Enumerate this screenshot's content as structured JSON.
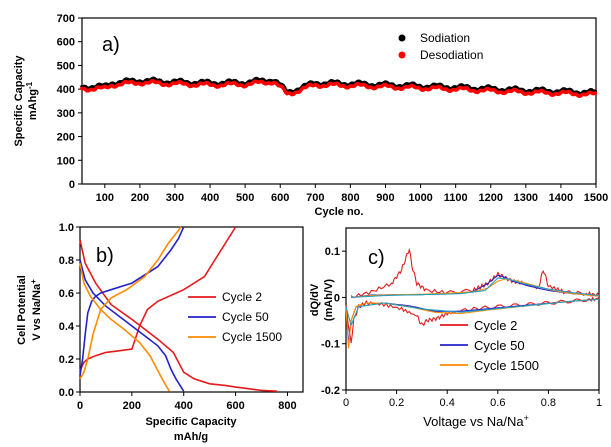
{
  "chart_data": [
    {
      "id": "a",
      "type": "scatter",
      "panel_label": "a)",
      "xlabel": "Cycle no.",
      "ylabel_lines": [
        "Specific Capacity",
        "mAhg-1"
      ],
      "xlim": [
        35,
        1500
      ],
      "ylim": [
        0,
        700
      ],
      "xticks": [
        100,
        200,
        300,
        400,
        500,
        600,
        700,
        800,
        900,
        1000,
        1100,
        1200,
        1300,
        1400,
        1500
      ],
      "yticks": [
        0,
        100,
        200,
        300,
        400,
        500,
        600,
        700
      ],
      "legend_position": "top-right",
      "series": [
        {
          "name": "Sodiation",
          "color": "#000000",
          "x": [
            35,
            100,
            120,
            200,
            300,
            400,
            500,
            580,
            600,
            620,
            700,
            800,
            900,
            1000,
            1100,
            1200,
            1300,
            1400,
            1500
          ],
          "y": [
            412,
            412,
            428,
            438,
            432,
            428,
            430,
            442,
            418,
            388,
            428,
            425,
            420,
            415,
            410,
            403,
            397,
            393,
            387
          ]
        },
        {
          "name": "Desodiation",
          "color": "#ff0000",
          "x": [
            35,
            100,
            120,
            200,
            300,
            400,
            500,
            580,
            600,
            620,
            700,
            800,
            900,
            1000,
            1100,
            1200,
            1300,
            1400,
            1500
          ],
          "y": [
            402,
            402,
            418,
            428,
            422,
            418,
            420,
            432,
            408,
            378,
            418,
            415,
            410,
            405,
            400,
            393,
            387,
            383,
            377
          ]
        }
      ]
    },
    {
      "id": "b",
      "type": "line",
      "panel_label": "b)",
      "xlabel_lines": [
        "Specific Capacity",
        "mAh/g"
      ],
      "ylabel_lines": [
        "Cell Potential",
        "V vs Na/Na+"
      ],
      "xlim": [
        0,
        860
      ],
      "ylim": [
        0,
        1.0
      ],
      "xticks": [
        0,
        200,
        400,
        600,
        800
      ],
      "yticks": [
        0.0,
        0.2,
        0.4,
        0.6,
        0.8,
        1.0
      ],
      "legend_position": "right",
      "series": [
        {
          "name": "Cycle 2",
          "color": "#e41a1c",
          "x": [
            0,
            15,
            30,
            60,
            100,
            150,
            200,
            230,
            260,
            300,
            400,
            480,
            520,
            560,
            600
          ],
          "y": [
            0.13,
            0.18,
            0.2,
            0.22,
            0.24,
            0.25,
            0.26,
            0.4,
            0.5,
            0.55,
            0.62,
            0.7,
            0.8,
            0.9,
            1.0
          ]
        },
        {
          "name": "Cycle 2",
          "color": "#e41a1c",
          "x": [
            0,
            20,
            60,
            120,
            200,
            250,
            300,
            360,
            400,
            440,
            500,
            560,
            600,
            650,
            700,
            760
          ],
          "y": [
            0.92,
            0.78,
            0.66,
            0.53,
            0.44,
            0.38,
            0.32,
            0.24,
            0.12,
            0.08,
            0.05,
            0.04,
            0.03,
            0.02,
            0.01,
            0.005
          ]
        },
        {
          "name": "Cycle 50",
          "color": "#2222cc",
          "x": [
            0,
            10,
            20,
            30,
            45,
            60,
            80,
            120,
            200,
            300,
            350,
            380,
            400
          ],
          "y": [
            0.1,
            0.2,
            0.35,
            0.48,
            0.55,
            0.58,
            0.6,
            0.62,
            0.66,
            0.76,
            0.86,
            0.93,
            1.0
          ]
        },
        {
          "name": "Cycle 50",
          "color": "#2222cc",
          "x": [
            0,
            20,
            50,
            100,
            150,
            200,
            250,
            300,
            330,
            350,
            370,
            390,
            400
          ],
          "y": [
            0.8,
            0.68,
            0.6,
            0.52,
            0.46,
            0.4,
            0.34,
            0.28,
            0.22,
            0.14,
            0.08,
            0.03,
            0.005
          ]
        },
        {
          "name": "Cycle 1500",
          "color": "#ff8c00",
          "x": [
            0,
            15,
            30,
            50,
            80,
            120,
            180,
            250,
            300,
            340,
            370,
            390
          ],
          "y": [
            0.08,
            0.12,
            0.2,
            0.35,
            0.5,
            0.57,
            0.62,
            0.7,
            0.8,
            0.9,
            0.96,
            1.0
          ]
        },
        {
          "name": "Cycle 1500",
          "color": "#ff8c00",
          "x": [
            0,
            15,
            40,
            80,
            120,
            170,
            230,
            270,
            300,
            320,
            335,
            345
          ],
          "y": [
            0.78,
            0.66,
            0.58,
            0.5,
            0.44,
            0.38,
            0.3,
            0.22,
            0.13,
            0.07,
            0.03,
            0.005
          ]
        }
      ]
    },
    {
      "id": "c",
      "type": "line",
      "panel_label": "c)",
      "xlabel": "Voltage vs Na/Na+",
      "ylabel_lines": [
        "dQ/dV",
        "(mAh/V)"
      ],
      "xlim": [
        0,
        1.0
      ],
      "ylim": [
        -0.2,
        0.15
      ],
      "xticks": [
        0,
        0.2,
        0.4,
        0.6,
        0.8,
        1
      ],
      "yticks": [
        -0.2,
        -0.1,
        0,
        0.1
      ],
      "legend_position": "bottom-right",
      "series": [
        {
          "name": "Cycle 2",
          "color": "#e41a1c",
          "x": [
            0.02,
            0.1,
            0.18,
            0.22,
            0.24,
            0.25,
            0.26,
            0.28,
            0.32,
            0.4,
            0.5,
            0.56,
            0.6,
            0.62,
            0.66,
            0.7,
            0.76,
            0.78,
            0.8,
            0.86,
            0.95,
            1.0
          ],
          "y": [
            0.0,
            0.012,
            0.03,
            0.06,
            0.09,
            0.105,
            0.07,
            0.03,
            0.015,
            0.01,
            0.015,
            0.03,
            0.05,
            0.045,
            0.035,
            0.03,
            0.02,
            0.06,
            0.025,
            0.012,
            0.008,
            0.005
          ]
        },
        {
          "name": "Cycle 2",
          "color": "#e41a1c",
          "x": [
            0.0,
            0.02,
            0.03,
            0.05,
            0.08,
            0.15,
            0.22,
            0.28,
            0.3,
            0.32,
            0.36,
            0.4,
            0.46,
            0.55,
            0.65,
            0.75,
            0.85,
            0.95,
            1.0
          ],
          "y": [
            -0.02,
            -0.1,
            -0.05,
            -0.02,
            -0.012,
            -0.015,
            -0.025,
            -0.04,
            -0.06,
            -0.05,
            -0.045,
            -0.035,
            -0.028,
            -0.022,
            -0.018,
            -0.014,
            -0.01,
            -0.005,
            -0.003
          ]
        },
        {
          "name": "Cycle 50",
          "color": "#2222cc",
          "x": [
            0.02,
            0.1,
            0.2,
            0.3,
            0.4,
            0.5,
            0.56,
            0.6,
            0.62,
            0.66,
            0.72,
            0.8,
            0.9,
            1.0
          ],
          "y": [
            0.0,
            0.005,
            0.006,
            0.006,
            0.008,
            0.012,
            0.03,
            0.048,
            0.045,
            0.035,
            0.025,
            0.015,
            0.008,
            0.004
          ]
        },
        {
          "name": "Cycle 50",
          "color": "#2222cc",
          "x": [
            0.0,
            0.01,
            0.02,
            0.04,
            0.08,
            0.15,
            0.25,
            0.35,
            0.45,
            0.55,
            0.65,
            0.75,
            0.85,
            1.0
          ],
          "y": [
            -0.02,
            -0.1,
            -0.05,
            -0.02,
            -0.012,
            -0.012,
            -0.018,
            -0.03,
            -0.03,
            -0.025,
            -0.02,
            -0.015,
            -0.01,
            -0.004
          ]
        },
        {
          "name": "Cycle 1500",
          "color": "#ff8c00",
          "x": [
            0.02,
            0.1,
            0.2,
            0.3,
            0.4,
            0.5,
            0.56,
            0.6,
            0.63,
            0.68,
            0.75,
            0.82,
            0.9,
            1.0
          ],
          "y": [
            0.0,
            0.004,
            0.006,
            0.007,
            0.009,
            0.012,
            0.02,
            0.035,
            0.04,
            0.035,
            0.025,
            0.015,
            0.008,
            0.003
          ]
        },
        {
          "name": "Cycle 1500",
          "color": "#ff8c00",
          "x": [
            0.0,
            0.01,
            0.02,
            0.04,
            0.08,
            0.15,
            0.25,
            0.35,
            0.45,
            0.55,
            0.65,
            0.75,
            0.85,
            1.0
          ],
          "y": [
            -0.02,
            -0.11,
            -0.05,
            -0.02,
            -0.012,
            -0.012,
            -0.02,
            -0.032,
            -0.035,
            -0.028,
            -0.022,
            -0.016,
            -0.01,
            -0.004
          ]
        },
        {
          "name": "Cycle 1500",
          "color": "#20a0c0",
          "x": [
            0.02,
            0.15,
            0.3,
            0.45,
            0.55,
            0.6,
            0.64,
            0.7,
            0.8,
            0.9,
            1.0
          ],
          "y": [
            0.0,
            0.004,
            0.006,
            0.008,
            0.015,
            0.042,
            0.04,
            0.03,
            0.018,
            0.01,
            0.004
          ]
        },
        {
          "name": "Cycle 1500",
          "color": "#20a0c0",
          "x": [
            0.0,
            0.02,
            0.05,
            0.15,
            0.3,
            0.45,
            0.6,
            0.75,
            0.9,
            1.0
          ],
          "y": [
            -0.02,
            -0.06,
            -0.02,
            -0.012,
            -0.025,
            -0.032,
            -0.024,
            -0.016,
            -0.008,
            -0.004
          ]
        }
      ],
      "legend": [
        {
          "name": "Cycle 2",
          "color": "#e41a1c"
        },
        {
          "name": "Cycle 50",
          "color": "#2222cc"
        },
        {
          "name": "Cycle 1500",
          "color": "#ff8c00"
        }
      ]
    }
  ]
}
